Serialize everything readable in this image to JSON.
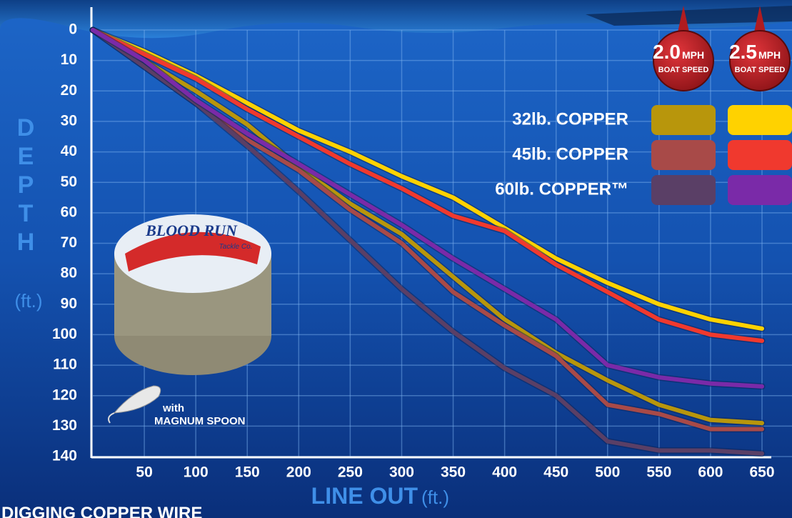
{
  "chart_data": {
    "type": "line",
    "y_title": "DEPTH",
    "y_unit": "(ft.)",
    "x_title": "LINE OUT",
    "x_unit": "(ft.)",
    "footer": "DIGGING COPPER WIRE",
    "note_line1": "with",
    "note_line2": "MAGNUM SPOON",
    "spool_brand": "BLOOD RUN",
    "spool_sub": "Tackle Co.",
    "x": [
      0,
      50,
      100,
      150,
      200,
      250,
      300,
      350,
      400,
      450,
      500,
      550,
      600,
      650
    ],
    "xlim": [
      0,
      650
    ],
    "xticks": [
      50,
      100,
      150,
      200,
      250,
      300,
      350,
      400,
      450,
      500,
      550,
      600,
      650
    ],
    "ylim": [
      0,
      140
    ],
    "y_inverted": true,
    "yticks": [
      0,
      10,
      20,
      30,
      40,
      50,
      60,
      70,
      80,
      90,
      100,
      110,
      120,
      130,
      140
    ],
    "grid": true,
    "speeds": [
      {
        "value": "2.0",
        "unit": "MPH",
        "caption": "BOAT SPEED"
      },
      {
        "value": "2.5",
        "unit": "MPH",
        "caption": "BOAT SPEED"
      }
    ],
    "series": [
      {
        "name": "32lb. COPPER",
        "colors": [
          "#b8960c",
          "#ffd200"
        ],
        "values": [
          [
            0,
            10,
            20,
            31,
            45,
            57,
            67,
            81,
            95,
            106,
            115,
            123,
            128,
            129
          ],
          [
            0,
            7,
            15,
            24,
            33,
            40,
            48,
            55,
            65,
            75,
            83,
            90,
            95,
            98
          ]
        ]
      },
      {
        "name": "45lb. COPPER",
        "colors": [
          "#a84a48",
          "#f0392e"
        ],
        "values": [
          [
            0,
            12,
            24,
            36,
            46,
            59,
            70,
            86,
            97,
            107,
            123,
            126,
            131,
            131
          ],
          [
            0,
            8,
            16,
            26,
            35,
            44,
            52,
            61,
            66,
            77,
            86,
            95,
            100,
            102
          ]
        ]
      },
      {
        "name": "60lb. COPPER™",
        "colors": [
          "#5a3f66",
          "#7a2aa8"
        ],
        "values": [
          [
            0,
            12,
            24,
            38,
            53,
            69,
            85,
            99,
            111,
            120,
            135,
            138,
            138,
            139
          ],
          [
            0,
            10,
            23,
            34,
            44,
            54,
            64,
            75,
            85,
            95,
            110,
            114,
            116,
            117
          ]
        ]
      }
    ]
  }
}
